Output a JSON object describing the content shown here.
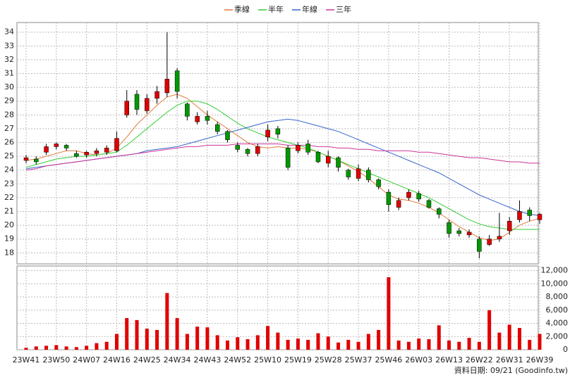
{
  "chart_data": {
    "type": "candlestick",
    "categories": [
      "23W41",
      null,
      null,
      "23W50",
      null,
      null,
      "24W07",
      null,
      null,
      "24W16",
      null,
      null,
      "24W25",
      null,
      null,
      "24W34",
      null,
      null,
      "24W43",
      null,
      null,
      "24W52",
      null,
      null,
      "25W10",
      null,
      null,
      "25W19",
      null,
      null,
      "25W28",
      null,
      null,
      "25W37",
      null,
      null,
      "25W46",
      null,
      null,
      "26W03",
      null,
      null,
      "26W13",
      null,
      null,
      "26W22",
      null,
      null,
      "26W31",
      null,
      null,
      "26W39"
    ],
    "open": [
      24.7,
      24.8,
      25.3,
      25.7,
      25.8,
      25.2,
      25.1,
      25.2,
      25.3,
      25.4,
      28.0,
      29.5,
      28.3,
      29.2,
      29.6,
      31.2,
      28.8,
      27.5,
      27.9,
      27.3,
      26.8,
      25.8,
      25.5,
      25.2,
      26.4,
      27.0,
      25.6,
      25.4,
      25.9,
      25.3,
      24.5,
      24.9,
      24.0,
      23.4,
      24.0,
      23.3,
      22.4,
      21.3,
      22.0,
      22.3,
      21.8,
      21.2,
      20.2,
      19.6,
      19.3,
      19.0,
      18.6,
      19.0,
      19.6,
      20.4,
      21.1,
      20.4
    ],
    "high": [
      25.1,
      25.0,
      25.9,
      26.0,
      25.9,
      25.4,
      25.4,
      25.6,
      25.8,
      26.8,
      29.8,
      29.8,
      29.5,
      30.1,
      34.0,
      31.4,
      28.9,
      28.2,
      28.3,
      27.5,
      26.9,
      26.0,
      25.6,
      25.9,
      27.3,
      27.2,
      25.8,
      26.0,
      26.2,
      25.4,
      25.4,
      25.0,
      24.1,
      24.4,
      24.2,
      23.4,
      22.6,
      22.0,
      22.6,
      22.5,
      21.9,
      21.3,
      20.4,
      19.8,
      19.7,
      19.2,
      19.3,
      20.9,
      20.6,
      21.8,
      21.3,
      20.9
    ],
    "low": [
      24.5,
      24.4,
      25.1,
      25.5,
      25.4,
      24.9,
      24.9,
      25.0,
      25.1,
      25.3,
      27.8,
      28.0,
      28.1,
      28.8,
      29.3,
      29.2,
      27.6,
      27.3,
      27.3,
      26.6,
      26.0,
      25.3,
      25.0,
      25.0,
      26.1,
      26.3,
      24.0,
      25.2,
      25.1,
      24.5,
      24.2,
      23.9,
      23.3,
      23.2,
      23.1,
      22.6,
      21.0,
      21.1,
      21.8,
      21.7,
      21.2,
      20.5,
      19.1,
      19.2,
      19.1,
      17.6,
      18.5,
      18.8,
      19.3,
      20.2,
      20.3,
      20.1
    ],
    "close": [
      24.9,
      24.6,
      25.7,
      25.9,
      25.6,
      25.0,
      25.3,
      25.4,
      25.6,
      26.3,
      29.0,
      28.4,
      29.2,
      29.7,
      30.6,
      29.7,
      27.9,
      27.9,
      27.6,
      26.8,
      26.2,
      25.5,
      25.2,
      25.7,
      26.9,
      26.6,
      24.2,
      25.8,
      25.3,
      24.6,
      25.0,
      24.2,
      23.5,
      24.1,
      23.3,
      22.8,
      21.5,
      21.8,
      22.4,
      21.9,
      21.3,
      20.8,
      19.4,
      19.4,
      19.5,
      18.1,
      19.0,
      19.2,
      20.3,
      21.0,
      20.7,
      20.8
    ],
    "up_color": "#e00000",
    "down_color": "#009900",
    "ylim": [
      17.2,
      34.7
    ],
    "yticks": [
      18,
      19,
      20,
      21,
      22,
      23,
      24,
      25,
      26,
      27,
      28,
      29,
      30,
      31,
      32,
      33,
      34
    ],
    "grid": true,
    "series": [
      {
        "name": "季線",
        "color": "#e07b39",
        "values": [
          24.7,
          24.8,
          25.0,
          25.2,
          25.4,
          25.4,
          25.2,
          25.1,
          25.2,
          25.6,
          26.4,
          27.3,
          28.0,
          28.7,
          29.3,
          29.5,
          29.2,
          28.6,
          28.0,
          27.5,
          27.0,
          26.5,
          26.0,
          25.7,
          25.6,
          25.7,
          25.6,
          25.6,
          25.5,
          25.3,
          25.0,
          24.7,
          24.3,
          23.9,
          23.4,
          22.8,
          22.2,
          21.9,
          21.8,
          21.6,
          21.3,
          20.9,
          20.4,
          19.9,
          19.5,
          19.1,
          18.9,
          19.0,
          19.5,
          20.0,
          20.3,
          20.5
        ]
      },
      {
        "name": "半年",
        "color": "#33cc33",
        "values": [
          24.2,
          24.4,
          24.6,
          24.8,
          24.9,
          25.0,
          25.0,
          25.1,
          25.2,
          25.3,
          25.8,
          26.4,
          27.0,
          27.6,
          28.2,
          28.7,
          29.0,
          29.0,
          28.8,
          28.4,
          27.9,
          27.4,
          27.0,
          26.7,
          26.4,
          26.2,
          26.0,
          25.8,
          25.6,
          25.3,
          25.0,
          24.7,
          24.4,
          24.1,
          23.8,
          23.5,
          23.2,
          22.9,
          22.6,
          22.3,
          22.0,
          21.6,
          21.2,
          20.8,
          20.4,
          20.1,
          19.9,
          19.8,
          19.7,
          19.7,
          19.7,
          19.7
        ]
      },
      {
        "name": "年線",
        "color": "#3366cc",
        "values": [
          24.1,
          24.2,
          24.3,
          24.4,
          24.5,
          24.6,
          24.7,
          24.8,
          24.9,
          25.0,
          25.1,
          25.2,
          25.4,
          25.5,
          25.6,
          25.7,
          25.9,
          26.1,
          26.3,
          26.5,
          26.7,
          26.9,
          27.1,
          27.3,
          27.5,
          27.6,
          27.7,
          27.6,
          27.4,
          27.2,
          27.0,
          26.8,
          26.5,
          26.2,
          25.9,
          25.6,
          25.3,
          25.0,
          24.7,
          24.4,
          24.1,
          23.8,
          23.4,
          23.0,
          22.6,
          22.2,
          21.9,
          21.6,
          21.3,
          21.0,
          20.8,
          20.7
        ]
      },
      {
        "name": "三年",
        "color": "#cc3399",
        "values": [
          24.0,
          24.1,
          24.3,
          24.4,
          24.5,
          24.6,
          24.7,
          24.8,
          24.9,
          25.0,
          25.1,
          25.2,
          25.3,
          25.4,
          25.5,
          25.6,
          25.7,
          25.7,
          25.8,
          25.8,
          25.8,
          25.9,
          25.9,
          25.9,
          25.9,
          25.9,
          25.8,
          25.8,
          25.8,
          25.7,
          25.7,
          25.6,
          25.6,
          25.5,
          25.5,
          25.4,
          25.4,
          25.4,
          25.4,
          25.3,
          25.3,
          25.2,
          25.1,
          25.0,
          24.9,
          24.9,
          24.8,
          24.7,
          24.6,
          24.6,
          24.5,
          24.5
        ]
      }
    ],
    "volume": {
      "type": "bar",
      "color": "#e00000",
      "values": [
        300,
        500,
        600,
        700,
        500,
        400,
        600,
        1000,
        1200,
        2400,
        4800,
        4500,
        3200,
        3000,
        8600,
        4800,
        2400,
        3500,
        3400,
        2200,
        1400,
        1900,
        1600,
        2200,
        3600,
        2600,
        1500,
        1700,
        1500,
        2500,
        2000,
        1100,
        1500,
        1200,
        2400,
        3000,
        11000,
        1400,
        1200,
        1700,
        1600,
        3700,
        1400,
        1200,
        1800,
        1200,
        6000,
        2600,
        3800,
        3300,
        1500,
        2400
      ],
      "ylim": [
        0,
        12700
      ],
      "yticks": [
        0,
        {
          "value": 2000,
          "label": "2,000"
        },
        {
          "value": 4000,
          "label": "4,000"
        },
        {
          "value": 6000,
          "label": "6,000"
        },
        {
          "value": 8000,
          "label": "8,000"
        },
        {
          "value": 10000,
          "label": "10,000"
        },
        {
          "value": 12000,
          "label": "12,000"
        }
      ]
    },
    "note": "資料日期: 09/21 (Goodinfo.tw)"
  }
}
